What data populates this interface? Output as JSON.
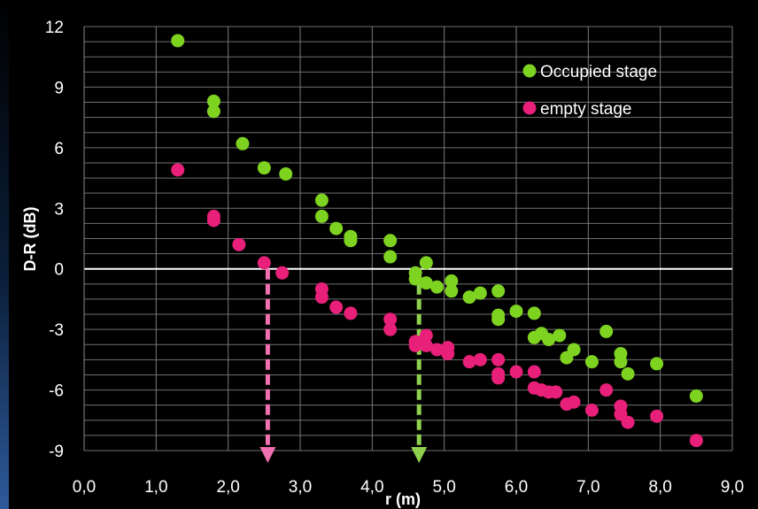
{
  "chart_data": {
    "type": "scatter",
    "title": "",
    "xlabel": "r (m)",
    "ylabel": "D-R (dB)",
    "xlim": [
      0,
      9
    ],
    "ylim": [
      -9,
      12
    ],
    "x_ticks": [
      "0,0",
      "1,0",
      "2,0",
      "3,0",
      "4,0",
      "5,0",
      "6,0",
      "7,0",
      "8,0",
      "9,0"
    ],
    "y_ticks": [
      "12",
      "9",
      "6",
      "3",
      "0",
      "-3",
      "-6",
      "-9"
    ],
    "grid": true,
    "legend_position": "top-right",
    "colors": {
      "occupied": "#7ed321",
      "empty": "#e8207a",
      "background": "#000000",
      "axis": "#ffffff"
    },
    "series": [
      {
        "name": "Occupied stage",
        "color": "#7ed321",
        "points": [
          [
            1.3,
            11.3
          ],
          [
            1.8,
            8.3
          ],
          [
            1.8,
            7.8
          ],
          [
            2.2,
            6.2
          ],
          [
            2.5,
            5.0
          ],
          [
            2.8,
            4.7
          ],
          [
            3.3,
            3.4
          ],
          [
            3.3,
            2.6
          ],
          [
            3.5,
            2.0
          ],
          [
            3.7,
            1.6
          ],
          [
            3.7,
            1.4
          ],
          [
            4.25,
            1.4
          ],
          [
            4.25,
            0.6
          ],
          [
            4.6,
            -0.2
          ],
          [
            4.6,
            -0.5
          ],
          [
            4.75,
            0.3
          ],
          [
            4.75,
            -0.7
          ],
          [
            4.9,
            -0.9
          ],
          [
            5.1,
            -0.6
          ],
          [
            5.1,
            -1.1
          ],
          [
            5.35,
            -1.4
          ],
          [
            5.5,
            -1.2
          ],
          [
            5.75,
            -1.1
          ],
          [
            5.75,
            -2.3
          ],
          [
            5.75,
            -2.5
          ],
          [
            6.0,
            -2.1
          ],
          [
            6.25,
            -2.2
          ],
          [
            6.25,
            -3.4
          ],
          [
            6.35,
            -3.2
          ],
          [
            6.45,
            -3.5
          ],
          [
            6.6,
            -3.3
          ],
          [
            6.7,
            -4.4
          ],
          [
            6.8,
            -4.0
          ],
          [
            7.05,
            -4.6
          ],
          [
            7.25,
            -3.1
          ],
          [
            7.45,
            -4.2
          ],
          [
            7.45,
            -4.6
          ],
          [
            7.55,
            -5.2
          ],
          [
            7.95,
            -4.7
          ],
          [
            8.5,
            -6.3
          ]
        ]
      },
      {
        "name": "empty stage",
        "color": "#e8207a",
        "points": [
          [
            1.3,
            4.9
          ],
          [
            1.8,
            2.6
          ],
          [
            1.8,
            2.4
          ],
          [
            2.15,
            1.2
          ],
          [
            2.5,
            0.3
          ],
          [
            2.75,
            -0.2
          ],
          [
            3.3,
            -1.0
          ],
          [
            3.3,
            -1.4
          ],
          [
            3.5,
            -1.9
          ],
          [
            3.7,
            -2.2
          ],
          [
            4.25,
            -2.5
          ],
          [
            4.25,
            -3.0
          ],
          [
            4.6,
            -3.6
          ],
          [
            4.6,
            -3.8
          ],
          [
            4.75,
            -3.3
          ],
          [
            4.75,
            -3.8
          ],
          [
            4.9,
            -4.0
          ],
          [
            5.05,
            -3.9
          ],
          [
            5.05,
            -4.2
          ],
          [
            5.35,
            -4.6
          ],
          [
            5.5,
            -4.5
          ],
          [
            5.75,
            -4.5
          ],
          [
            5.75,
            -5.2
          ],
          [
            5.75,
            -5.4
          ],
          [
            6.0,
            -5.1
          ],
          [
            6.25,
            -5.1
          ],
          [
            6.25,
            -5.9
          ],
          [
            6.35,
            -6.0
          ],
          [
            6.45,
            -6.1
          ],
          [
            6.55,
            -6.1
          ],
          [
            6.7,
            -6.7
          ],
          [
            6.8,
            -6.6
          ],
          [
            7.05,
            -7.0
          ],
          [
            7.25,
            -6.0
          ],
          [
            7.45,
            -6.8
          ],
          [
            7.45,
            -7.2
          ],
          [
            7.55,
            -7.6
          ],
          [
            7.95,
            -7.3
          ],
          [
            8.5,
            -8.5
          ]
        ]
      }
    ],
    "annotations": [
      {
        "type": "dashed-arrow",
        "color": "#f070b0",
        "x": 2.55,
        "from_y": 0,
        "to_y": -9
      },
      {
        "type": "dashed-arrow",
        "color": "#8fd14f",
        "x": 4.65,
        "from_y": 0,
        "to_y": -9
      }
    ]
  }
}
